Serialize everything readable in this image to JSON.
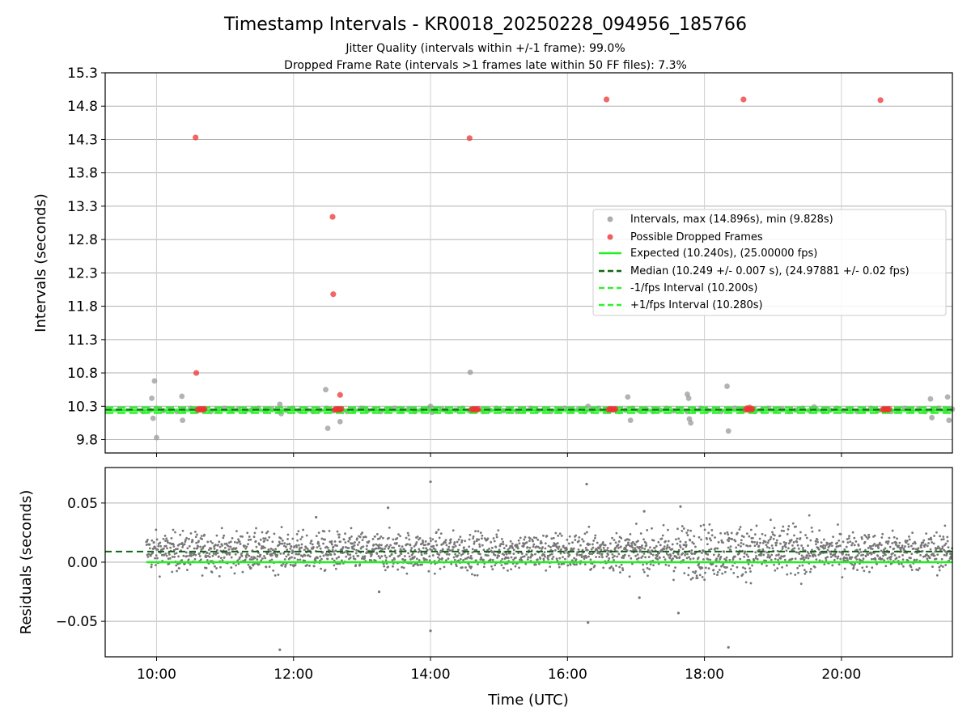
{
  "figure": {
    "title": "Timestamp Intervals - KR0018_20250228_094956_185766",
    "subtitle_1": "Jitter Quality (intervals within +/-1 frame): 99.0%",
    "subtitle_2": "Dropped Frame Rate (intervals >1 frames late within 50 FF files): 7.3%"
  },
  "colors": {
    "intervals": "#999999",
    "dropped": "#ee3333",
    "expected": "#22ee22",
    "median": "#116611",
    "band": "#33ee33",
    "residuals": "#777777",
    "grid": "#b0b0b0"
  },
  "chart_data": [
    {
      "type": "scatter",
      "panel": "top",
      "ylabel": "Intervals (seconds)",
      "ylim": [
        9.6,
        15.3
      ],
      "yticks": [
        "9.8",
        "10.3",
        "10.8",
        "11.3",
        "11.8",
        "12.3",
        "12.8",
        "13.3",
        "13.8",
        "14.3",
        "14.8",
        "15.3"
      ],
      "xlim": [
        9.25,
        21.62
      ],
      "xticks": [
        "10:00",
        "12:00",
        "14:00",
        "16:00",
        "18:00",
        "20:00"
      ],
      "grid": true,
      "legend_position": "center-right",
      "series": [
        {
          "name": "Intervals, max (14.896s), min (9.828s)",
          "style": "points",
          "x": [
            9.93,
            9.95,
            9.97,
            10.0,
            10.37,
            10.38,
            11.8,
            11.82,
            12.47,
            12.5,
            12.68,
            13.02,
            14.0,
            14.02,
            14.22,
            14.58,
            16.3,
            16.88,
            16.92,
            17.75,
            17.77,
            17.78,
            17.8,
            18.33,
            18.35,
            19.6,
            21.3,
            21.32,
            21.55,
            21.57
          ],
          "y": [
            10.42,
            10.12,
            10.68,
            9.83,
            10.45,
            10.09,
            10.33,
            10.19,
            10.55,
            9.97,
            10.07,
            10.27,
            10.3,
            10.21,
            10.24,
            10.81,
            10.3,
            10.44,
            10.09,
            10.48,
            10.42,
            10.11,
            10.05,
            10.6,
            9.93,
            10.29,
            10.41,
            10.13,
            10.44,
            10.09
          ]
        },
        {
          "name": "Possible Dropped Frames",
          "style": "points",
          "x": [
            10.57,
            10.58,
            12.57,
            12.58,
            12.68,
            14.57,
            16.57,
            18.57,
            20.57,
            10.6,
            10.62,
            10.64,
            10.66,
            10.68,
            10.7,
            12.6,
            12.62,
            12.64,
            12.66,
            12.68,
            12.7,
            14.6,
            14.62,
            14.64,
            14.66,
            14.68,
            14.7,
            16.6,
            16.62,
            16.64,
            16.66,
            16.68,
            16.7,
            18.6,
            18.62,
            18.64,
            18.66,
            18.68,
            18.7,
            20.6,
            20.62,
            20.64,
            20.66,
            20.68,
            20.7
          ],
          "y": [
            14.33,
            10.8,
            13.14,
            11.98,
            10.47,
            14.32,
            14.9,
            14.9,
            14.89,
            10.25,
            10.26,
            10.25,
            10.26,
            10.25,
            10.26,
            10.25,
            10.26,
            10.25,
            10.26,
            10.25,
            10.26,
            10.25,
            10.26,
            10.25,
            10.26,
            10.25,
            10.26,
            10.25,
            10.26,
            10.25,
            10.26,
            10.25,
            10.26,
            10.25,
            10.27,
            10.25,
            10.28,
            10.25,
            10.26,
            10.25,
            10.26,
            10.25,
            10.26,
            10.25,
            10.26
          ]
        },
        {
          "name": "Expected (10.240s), (25.00000 fps)",
          "style": "line",
          "y": 10.24
        },
        {
          "name": "Median (10.249 +/- 0.007 s), (24.97881 +/- 0.02 fps)",
          "style": "dashed-line",
          "y": 10.249
        },
        {
          "name": "-1/fps Interval (10.200s)",
          "style": "dashed-line",
          "y": 10.2
        },
        {
          "name": "+1/fps Interval (10.280s)",
          "style": "dashed-line",
          "y": 10.28
        }
      ]
    },
    {
      "type": "scatter",
      "panel": "bottom",
      "xlabel": "Time (UTC)",
      "ylabel": "Residuals (seconds)",
      "ylim": [
        -0.08,
        0.08
      ],
      "yticks": [
        "0.05",
        "0.00",
        "−0.05"
      ],
      "xlim": [
        9.25,
        21.62
      ],
      "xticks": [
        "10:00",
        "12:00",
        "14:00",
        "16:00",
        "18:00",
        "20:00"
      ],
      "grid": true,
      "series": [
        {
          "name": "",
          "style": "points",
          "x_range": [
            9.85,
            21.62
          ],
          "center": 0.009,
          "spread": 0.008,
          "count": 2400,
          "outliers_x": [
            14.0,
            16.28,
            12.33,
            13.38,
            17.12,
            17.65,
            16.3,
            14.0,
            11.8,
            18.35,
            17.05,
            17.62,
            13.25
          ],
          "outliers_y": [
            0.068,
            0.066,
            0.038,
            0.046,
            0.043,
            0.047,
            -0.051,
            -0.058,
            -0.074,
            -0.072,
            -0.03,
            -0.043,
            -0.025
          ]
        },
        {
          "name": "",
          "style": "line",
          "y": 0.0
        },
        {
          "name": "",
          "style": "dashed-line",
          "y": 0.009
        }
      ]
    }
  ]
}
